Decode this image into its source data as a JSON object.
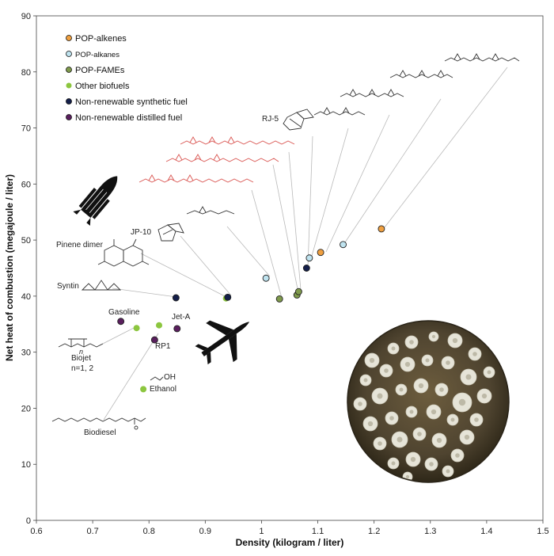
{
  "chart_data": {
    "type": "scatter",
    "xlabel": "Density (kilogram / liter)",
    "ylabel": "Net heat of combustion (megajoule / liter)",
    "xlim": [
      0.6,
      1.5
    ],
    "ylim": [
      0,
      90
    ],
    "xticks": [
      "0.6",
      "0.7",
      "0.8",
      "0.9",
      "1",
      "1.1",
      "1.2",
      "1.3",
      "1.4",
      "1.5"
    ],
    "yticks": [
      "0",
      "10",
      "20",
      "30",
      "40",
      "50",
      "60",
      "70",
      "80",
      "90"
    ],
    "grid": false,
    "legend_position": "top-left",
    "series": [
      {
        "name": "POP-alkenes",
        "color": "#f0a040",
        "points": [
          {
            "x": 1.105,
            "y": 47.8
          },
          {
            "x": 1.213,
            "y": 52.0
          }
        ]
      },
      {
        "name": "POP-alkanes",
        "color": "#bfe3ef",
        "points": [
          {
            "x": 1.008,
            "y": 43.2
          },
          {
            "x": 1.085,
            "y": 46.8
          },
          {
            "x": 1.145,
            "y": 49.2
          }
        ]
      },
      {
        "name": "POP-FAMEs",
        "color": "#7f9a4c",
        "points": [
          {
            "x": 1.032,
            "y": 39.5
          },
          {
            "x": 1.063,
            "y": 40.2
          },
          {
            "x": 1.066,
            "y": 40.8
          }
        ]
      },
      {
        "name": "Other biofuels",
        "color": "#8cc63f",
        "points": [
          {
            "x": 0.778,
            "y": 34.3
          },
          {
            "x": 0.818,
            "y": 34.8
          },
          {
            "x": 0.79,
            "y": 23.4
          },
          {
            "x": 0.937,
            "y": 39.6
          }
        ]
      },
      {
        "name": "Non-renewable synthetic fuel",
        "color": "#141f4a",
        "points": [
          {
            "x": 0.848,
            "y": 39.7
          },
          {
            "x": 0.94,
            "y": 39.8
          },
          {
            "x": 1.08,
            "y": 45.0
          }
        ]
      },
      {
        "name": "Non-renewable distilled fuel",
        "color": "#5a1f5e",
        "points": [
          {
            "x": 0.75,
            "y": 35.5
          },
          {
            "x": 0.81,
            "y": 32.2
          },
          {
            "x": 0.85,
            "y": 34.2
          }
        ]
      }
    ],
    "annotations": [
      "RJ-5",
      "JP-10",
      "Pinene dimer",
      "Syntin",
      "Gasoline",
      "Jet-A",
      "RP1",
      "Biojet",
      "n=1, 2",
      "n",
      "OH",
      "Ethanol",
      "Biodiesel"
    ]
  },
  "icons": [
    "rocket-icon",
    "airplane-icon",
    "petri-dish-image"
  ]
}
